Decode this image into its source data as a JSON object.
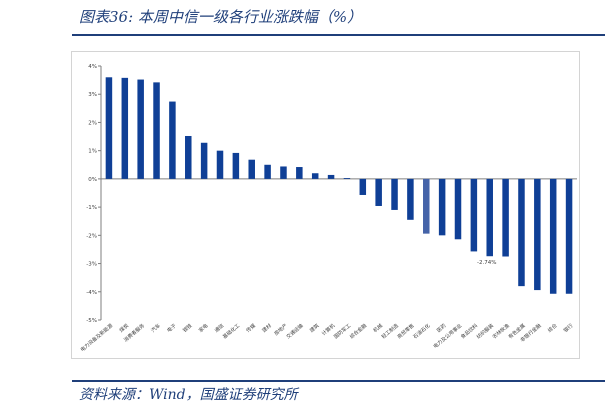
{
  "header": {
    "figure_title": "图表36:  本周中信一级各行业涨跌幅（%）"
  },
  "footer": {
    "source": "资料来源：Wind，国盛证券研究所"
  },
  "colors": {
    "bar": "#0f3f96",
    "bar_highlight": "#4563a8",
    "rule": "#1f3f7a"
  },
  "chart_data": {
    "type": "bar",
    "title": "",
    "xlabel": "",
    "ylabel": "",
    "ylim": [
      -5,
      4
    ],
    "yticks": [
      "4%",
      "3%",
      "2%",
      "1%",
      "0%",
      "-1%",
      "-2%",
      "-3%",
      "-4%",
      "-5%"
    ],
    "grid": false,
    "categories": [
      "电力设备及新能源",
      "煤炭",
      "消费者服务",
      "汽车",
      "电子",
      "钢铁",
      "家电",
      "通信",
      "基础化工",
      "传媒",
      "建材",
      "房地产",
      "交通运输",
      "建筑",
      "计算机",
      "国防军工",
      "综合金融",
      "机械",
      "轻工制造",
      "商贸零售",
      "石油石化",
      "医药",
      "电力及公用事业",
      "食品饮料",
      "纺织服装",
      "农林牧渔",
      "有色金属",
      "非银行金融",
      "综合",
      "银行"
    ],
    "values": [
      3.6,
      3.58,
      3.52,
      3.42,
      2.74,
      1.52,
      1.28,
      1.0,
      0.92,
      0.68,
      0.5,
      0.44,
      0.42,
      0.2,
      0.14,
      0.03,
      -0.57,
      -0.96,
      -1.1,
      -1.45,
      -1.94,
      -2.0,
      -2.14,
      -2.57,
      -2.74,
      -2.75,
      -3.8,
      -3.94,
      -4.07,
      -4.07
    ],
    "highlight_index": 20,
    "annotation": {
      "label": "-2.74%",
      "category": "纺织服装"
    }
  }
}
